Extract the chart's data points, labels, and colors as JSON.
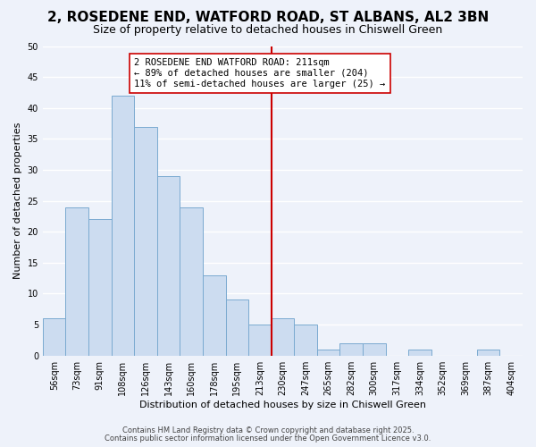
{
  "title": "2, ROSEDENE END, WATFORD ROAD, ST ALBANS, AL2 3BN",
  "subtitle": "Size of property relative to detached houses in Chiswell Green",
  "xlabel": "Distribution of detached houses by size in Chiswell Green",
  "ylabel": "Number of detached properties",
  "bin_labels": [
    "56sqm",
    "73sqm",
    "91sqm",
    "108sqm",
    "126sqm",
    "143sqm",
    "160sqm",
    "178sqm",
    "195sqm",
    "213sqm",
    "230sqm",
    "247sqm",
    "265sqm",
    "282sqm",
    "300sqm",
    "317sqm",
    "334sqm",
    "352sqm",
    "369sqm",
    "387sqm",
    "404sqm"
  ],
  "bar_heights": [
    6,
    24,
    22,
    42,
    37,
    29,
    24,
    13,
    9,
    5,
    6,
    5,
    1,
    2,
    2,
    0,
    1,
    0,
    0,
    1,
    0
  ],
  "bar_color": "#ccdcf0",
  "bar_edge_color": "#7aaad0",
  "ylim": [
    0,
    50
  ],
  "yticks": [
    0,
    5,
    10,
    15,
    20,
    25,
    30,
    35,
    40,
    45,
    50
  ],
  "vline_x_index": 9,
  "vline_color": "#cc0000",
  "annotation_text": "2 ROSEDENE END WATFORD ROAD: 211sqm\n← 89% of detached houses are smaller (204)\n11% of semi-detached houses are larger (25) →",
  "annotation_box_color": "#ffffff",
  "annotation_box_edge": "#cc0000",
  "footnote1": "Contains HM Land Registry data © Crown copyright and database right 2025.",
  "footnote2": "Contains public sector information licensed under the Open Government Licence v3.0.",
  "background_color": "#eef2fa",
  "grid_color": "#ffffff",
  "title_fontsize": 11,
  "subtitle_fontsize": 9,
  "axis_label_fontsize": 8,
  "tick_fontsize": 7,
  "annotation_fontsize": 7.5,
  "footnote_fontsize": 6
}
